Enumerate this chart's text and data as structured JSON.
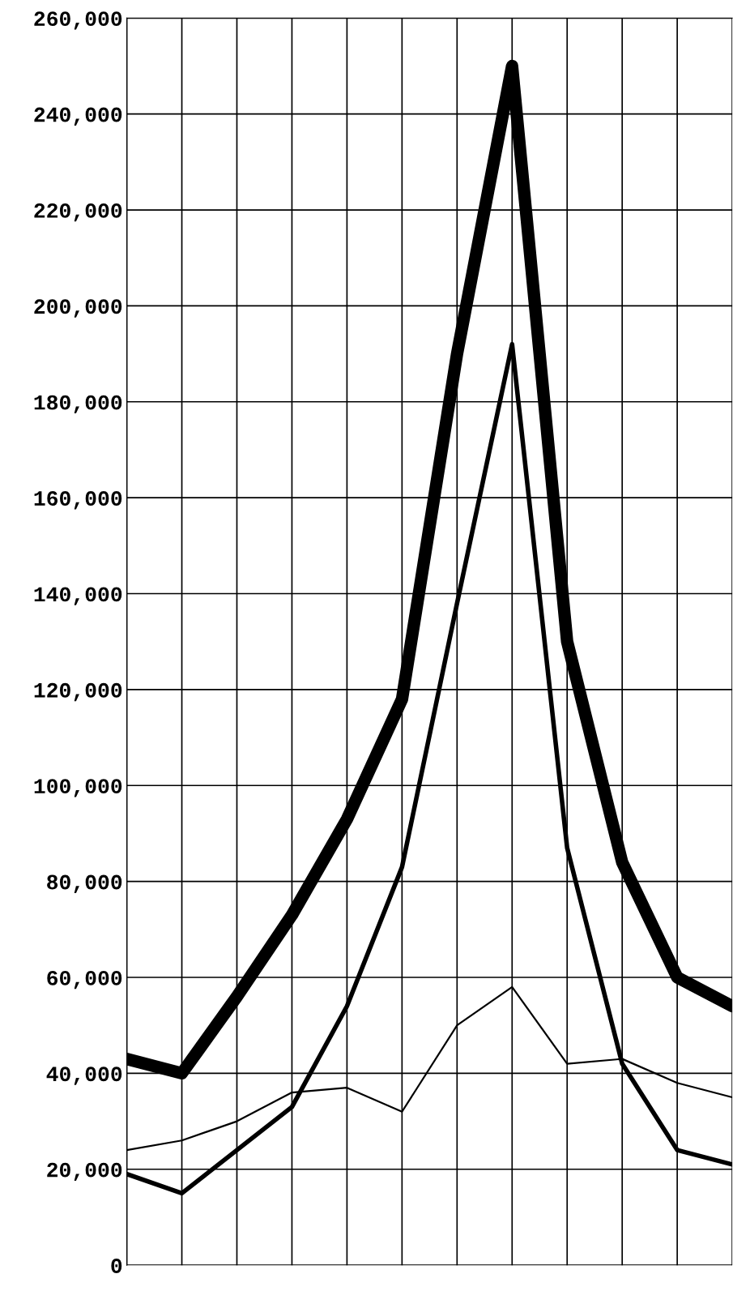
{
  "chart_data": {
    "type": "line",
    "categories": [
      null,
      null,
      null,
      null,
      null,
      null,
      null,
      null,
      null,
      null,
      null,
      null
    ],
    "series": [
      {
        "color": "#000000",
        "values": [
          43000,
          40000,
          56000,
          73000,
          93000,
          118000,
          190000,
          250000,
          130000,
          84000,
          60000,
          54000
        ]
      },
      {
        "color": "#000000",
        "values": [
          19000,
          15000,
          24000,
          33000,
          54000,
          83000,
          138000,
          192000,
          87000,
          42000,
          24000,
          21000
        ]
      },
      {
        "color": "#000000",
        "values": [
          24000,
          26000,
          30000,
          36000,
          37000,
          32000,
          50000,
          58000,
          42000,
          43000,
          38000,
          35000
        ]
      }
    ],
    "ylim": [
      0,
      260000
    ],
    "yticks": [
      {
        "value": 0,
        "label": "0"
      },
      {
        "value": 20000,
        "label": "20,000"
      },
      {
        "value": 40000,
        "label": "40,000"
      },
      {
        "value": 60000,
        "label": "60,000"
      },
      {
        "value": 80000,
        "label": "80,000"
      },
      {
        "value": 100000,
        "label": "100,000"
      },
      {
        "value": 120000,
        "label": "120,000"
      },
      {
        "value": 140000,
        "label": "140,000"
      },
      {
        "value": 160000,
        "label": "160,000"
      },
      {
        "value": 180000,
        "label": "180,000"
      },
      {
        "value": 200000,
        "label": "200,000"
      },
      {
        "value": 220000,
        "label": "220,000"
      },
      {
        "value": 240000,
        "label": "240,000"
      },
      {
        "value": 260000,
        "label": "260,000"
      }
    ],
    "grid": true,
    "tick_labels": "y",
    "marker": "none",
    "line_style": "solid"
  }
}
